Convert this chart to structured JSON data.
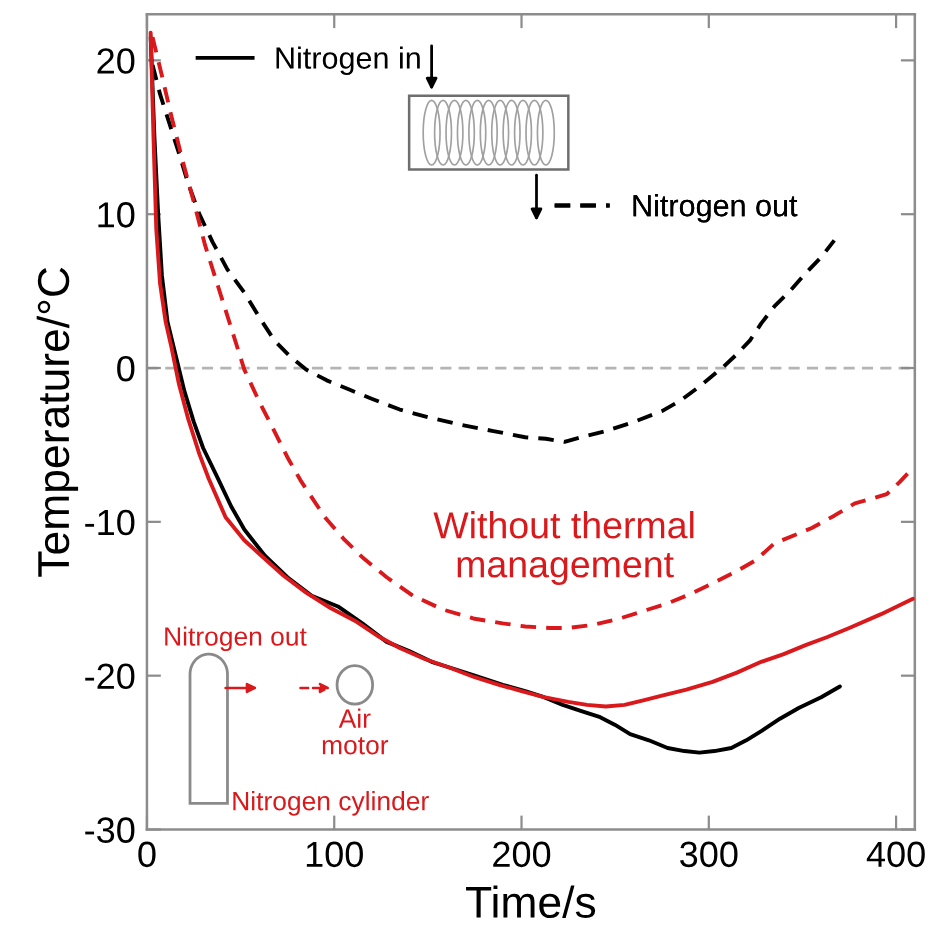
{
  "chart_data": {
    "type": "line",
    "xlabel": "Time/s",
    "ylabel": "Temperature/°C",
    "xlim": [
      0,
      410
    ],
    "ylim": [
      -30,
      23
    ],
    "xticks": [
      0,
      100,
      200,
      300,
      400
    ],
    "yticks": [
      -30,
      -20,
      -10,
      0,
      10,
      20
    ],
    "legend": "top",
    "ref_lines": [
      {
        "axis": "y",
        "value": 0,
        "color": "#b4b4b4",
        "line_style": "dashed"
      }
    ],
    "annotations": [
      "Nitrogen out",
      "Air\nmotor",
      "Nitrogen cylinder"
    ],
    "series": [
      {
        "name": "Nitrogen in",
        "color": "#000000",
        "line_style": "solid",
        "x": [
          2,
          4,
          6,
          8,
          11,
          15,
          20,
          25,
          30,
          38,
          45,
          52,
          63,
          75,
          88,
          102,
          115,
          128,
          140,
          152,
          165,
          175,
          190,
          202,
          212,
          222,
          232,
          242,
          250,
          258,
          268,
          278,
          287,
          295,
          303,
          312,
          320,
          328,
          338,
          348,
          360,
          370
        ],
        "values": [
          21.5,
          15,
          10,
          6,
          3,
          1,
          -1.5,
          -3.5,
          -5.2,
          -7.2,
          -9,
          -10.5,
          -12.2,
          -13.6,
          -14.8,
          -15.5,
          -16.6,
          -17.8,
          -18.4,
          -19.1,
          -19.6,
          -20,
          -20.6,
          -21,
          -21.4,
          -21.9,
          -22.3,
          -22.7,
          -23.2,
          -23.8,
          -24.2,
          -24.7,
          -24.9,
          -25,
          -24.9,
          -24.7,
          -24.2,
          -23.6,
          -22.8,
          -22.1,
          -21.4,
          -20.7
        ]
      },
      {
        "name": "Nitrogen out",
        "color": "#000000",
        "line_style": "dashed",
        "x": [
          3,
          7,
          12,
          17,
          22,
          28,
          35,
          43,
          52,
          60,
          68,
          76,
          85,
          96,
          108,
          120,
          135,
          150,
          168,
          185,
          202,
          213,
          223,
          235,
          245,
          260,
          275,
          285,
          295,
          308,
          315,
          322,
          328,
          335,
          344,
          352,
          360,
          367
        ],
        "values": [
          19.7,
          17.8,
          15.9,
          14,
          12,
          10,
          8.2,
          6.4,
          4.9,
          3.3,
          1.8,
          0.8,
          -0.1,
          -0.8,
          -1.4,
          -2,
          -2.7,
          -3.2,
          -3.7,
          -4.1,
          -4.5,
          -4.6,
          -4.8,
          -4.4,
          -4.1,
          -3.5,
          -2.8,
          -2.1,
          -1.2,
          0.1,
          0.9,
          1.8,
          2.9,
          4,
          5.1,
          6.2,
          7.2,
          8.3
        ]
      },
      {
        "name": "Without thermal\nmanagement",
        "color": "#d9191c",
        "line_style": "solid",
        "x": [
          2,
          3.5,
          5,
          7,
          10,
          13,
          17,
          22,
          28,
          33,
          42,
          52,
          62,
          73,
          85,
          98,
          112,
          123,
          135,
          148,
          162,
          175,
          188,
          200,
          212,
          225,
          235,
          245,
          255,
          265,
          275,
          288,
          302,
          315,
          328,
          340,
          352,
          363,
          375,
          392,
          409
        ],
        "values": [
          21.8,
          15,
          9,
          5.5,
          3,
          1.4,
          -1,
          -3.3,
          -5.6,
          -7.2,
          -9.7,
          -11.2,
          -12.3,
          -13.5,
          -14.6,
          -15.6,
          -16.5,
          -17.4,
          -18.2,
          -18.9,
          -19.5,
          -20.1,
          -20.6,
          -21,
          -21.4,
          -21.7,
          -21.9,
          -22,
          -21.9,
          -21.6,
          -21.3,
          -20.9,
          -20.4,
          -19.8,
          -19.1,
          -18.6,
          -18,
          -17.5,
          -16.9,
          -16,
          -15
        ]
      },
      {
        "color": "#d9191c",
        "line_style": "dashed",
        "x": [
          3,
          8,
          13,
          19,
          25,
          31,
          38,
          45,
          52,
          60,
          68,
          75,
          82,
          95,
          105,
          115,
          128,
          142,
          158,
          175,
          190,
          202,
          215,
          225,
          238,
          252,
          265,
          278,
          290,
          302,
          315,
          325,
          335,
          345,
          355,
          367,
          378,
          387,
          395,
          402,
          409
        ],
        "values": [
          21.5,
          19,
          16.4,
          13.5,
          10.8,
          8,
          5.3,
          2.6,
          -0.1,
          -2.2,
          -4.1,
          -5.8,
          -7.3,
          -9.7,
          -11.1,
          -12.3,
          -13.6,
          -14.8,
          -15.7,
          -16.3,
          -16.6,
          -16.8,
          -16.9,
          -16.9,
          -16.7,
          -16.3,
          -15.8,
          -15.3,
          -14.7,
          -14,
          -13.2,
          -12.5,
          -11.4,
          -10.9,
          -10.4,
          -9.6,
          -8.8,
          -8.5,
          -8.2,
          -7.4,
          -6.5
        ]
      }
    ]
  }
}
